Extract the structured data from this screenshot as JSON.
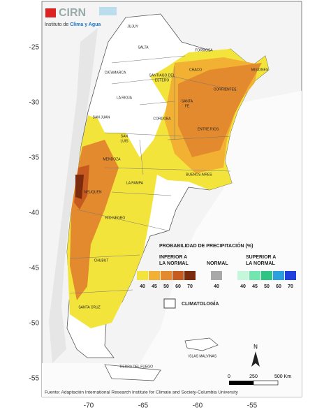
{
  "logo": {
    "name": "CIRN",
    "institute": "Instituto de",
    "institute_bold": "Clima y Agua"
  },
  "provinces": [
    "JUJUY",
    "SALTA",
    "FORMOSA",
    "CATAMARCA",
    "CHACO",
    "MISIONES",
    "SANTIAGO DEL",
    "ESTERO",
    "CORRIENTES",
    "LA RIOJA",
    "SANTA",
    "FE",
    "SAN JUAN",
    "CORDOBA",
    "ENTRE RIOS",
    "SAN",
    "LUIS",
    "MENDOZA",
    "BUENOS AIRES",
    "LA PAMPA",
    "NEUQUEN",
    "RIO NEGRO",
    "CHUBUT",
    "SANTA CRUZ",
    "TIERRA DEL FUEGO",
    "ISLAS MALVINAS"
  ],
  "legend": {
    "title": "PROBABILIDAD DE PRECIPITACIÓN (%)",
    "below": {
      "label": [
        "INFERIOR A",
        "LA NORMAL"
      ],
      "levels": [
        40,
        45,
        50,
        60,
        70
      ],
      "colors": [
        "#f3e43c",
        "#f2b132",
        "#e38a2e",
        "#c75a1e",
        "#7a2c0c"
      ]
    },
    "normal": {
      "label": "NORMAL",
      "levels": [
        40
      ],
      "colors": [
        "#a8a8a8"
      ]
    },
    "above": {
      "label": [
        "SUPERIOR A",
        "LA NORMAL"
      ],
      "levels": [
        40,
        45,
        50,
        60,
        70
      ],
      "colors": [
        "#c4f7dc",
        "#71e6ae",
        "#2fc486",
        "#2aa0de",
        "#2140dc"
      ]
    },
    "climatology": "CLIMATOLOGÍA"
  },
  "latitude_labels": [
    -25,
    -30,
    -35,
    -40,
    -45,
    -50,
    -55
  ],
  "longitude_labels": [
    -70,
    -65,
    -60,
    -55
  ],
  "north": "N",
  "scale": [
    "0",
    "250",
    "500 Km"
  ],
  "footer": "Fuente: Adaptación International Research Institute for Climate and Society-Columbia University"
}
